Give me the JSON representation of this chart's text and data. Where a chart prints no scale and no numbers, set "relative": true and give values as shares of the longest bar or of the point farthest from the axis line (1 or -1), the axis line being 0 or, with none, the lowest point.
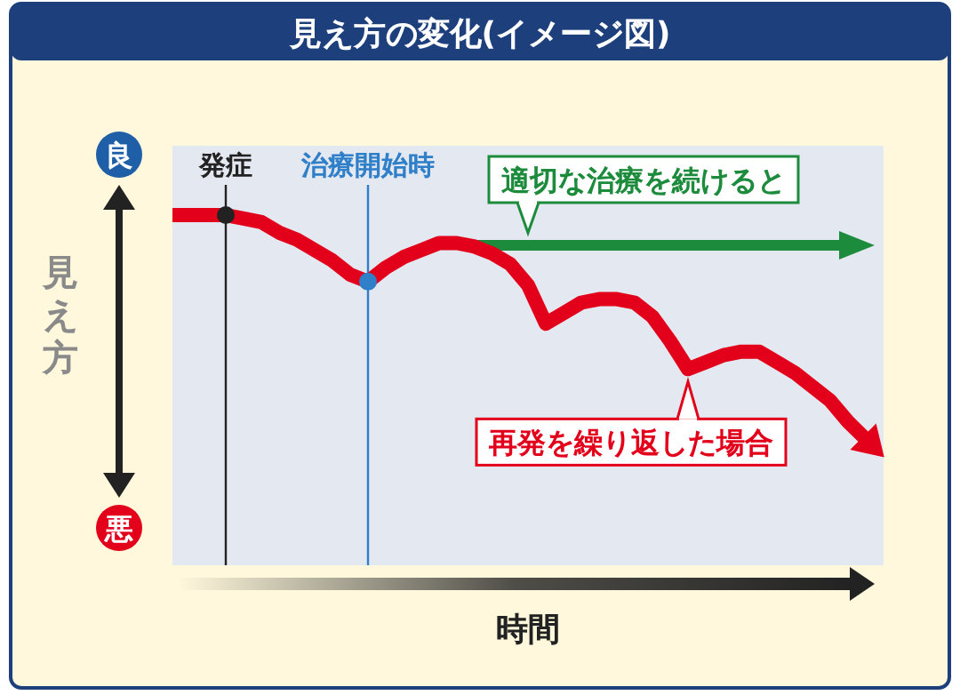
{
  "chart_data": {
    "type": "line",
    "title": "見え方の変化(イメージ図)",
    "ylabel": "見え方",
    "relative": true,
    "categories": [
      null,
      null,
      null,
      null,
      null,
      null,
      null,
      null,
      null,
      null,
      null,
      null,
      null,
      null,
      null,
      null,
      null,
      null,
      null,
      null,
      null,
      null,
      null,
      null,
      null,
      null,
      null,
      null,
      null,
      null,
      null,
      null,
      null,
      null,
      null,
      null,
      null,
      null,
      null,
      null
    ],
    "series": [
      {
        "color": "#e3001b",
        "values": [
          1,
          1,
          1,
          1,
          0.99,
          0.98,
          0.95,
          0.93,
          0.9,
          0.87,
          0.83,
          0.81,
          0.85,
          0.88,
          0.9,
          0.92,
          0.92,
          0.91,
          0.89,
          0.86,
          0.8,
          0.69,
          0.72,
          0.75,
          0.76,
          0.76,
          0.75,
          0.71,
          0.64,
          0.56,
          0.58,
          0.6,
          0.61,
          0.61,
          0.58,
          0.55,
          0.51,
          0.47,
          0.41,
          0.36
        ]
      }
    ],
    "annotations": [
      "発症",
      "治療開始時",
      "適切な治療を続けると",
      "再発を繰り返した場合",
      "時間",
      "良",
      "悪"
    ]
  }
}
